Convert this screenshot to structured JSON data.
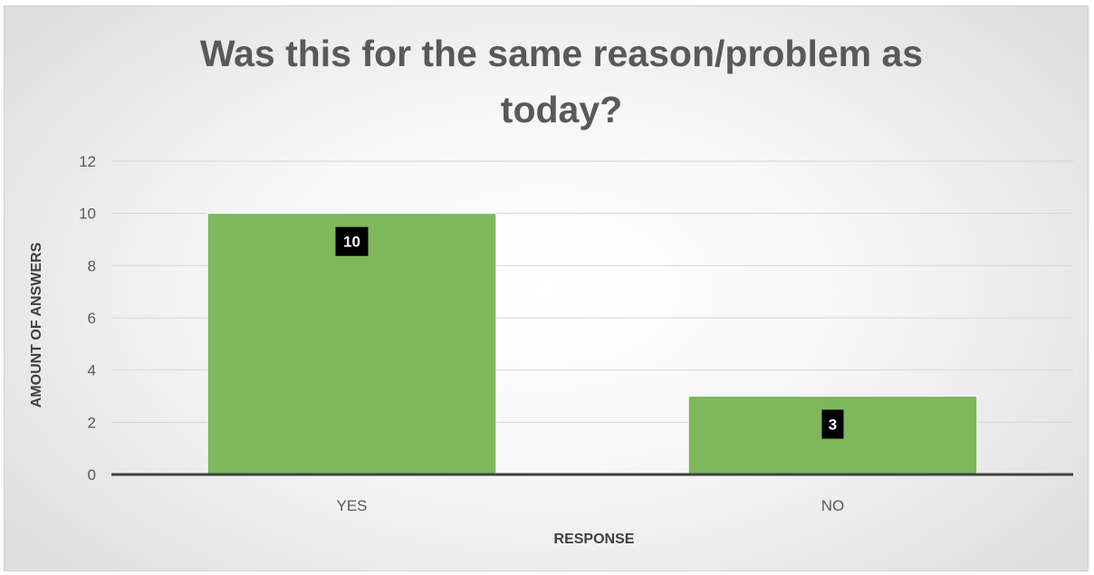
{
  "chart_data": {
    "type": "bar",
    "title_lines": [
      "Was this for the same reason/problem as",
      "today?"
    ],
    "categories": [
      "YES",
      "NO"
    ],
    "values": [
      10,
      3
    ],
    "data_labels": [
      "10",
      "3"
    ],
    "xlabel": "RESPONSE",
    "ylabel": "AMOUNT OF ANSWERS",
    "ylim": [
      0,
      12
    ],
    "yticks": [
      "0",
      "2",
      "4",
      "6",
      "8",
      "10",
      "12"
    ],
    "grid": true,
    "legend": "none",
    "bar_color": "#7fb75d",
    "label_bg_color": "#000000"
  }
}
